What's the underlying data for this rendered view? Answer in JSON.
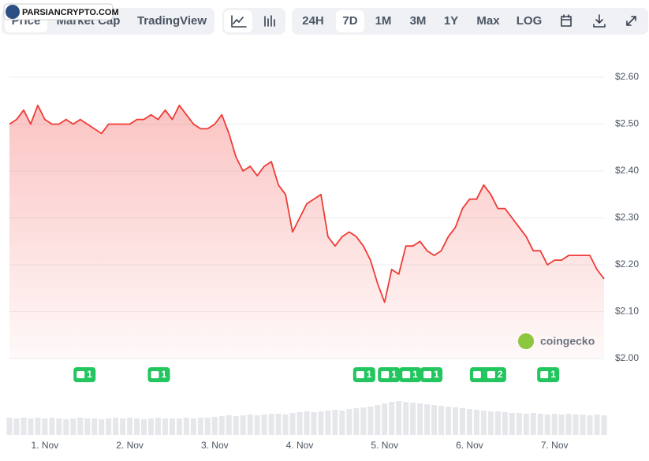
{
  "ui": {
    "tabs": [
      "Price",
      "Market Cap",
      "TradingView"
    ],
    "ranges": [
      "24H",
      "7D",
      "1M",
      "3M",
      "1Y",
      "Max",
      "LOG"
    ],
    "watermark": "PARSIANCRYPTO.COM",
    "brand": "coingecko"
  },
  "chart_data": {
    "type": "area",
    "x": [
      -10,
      -8,
      -6,
      -4,
      -2,
      0,
      2,
      4,
      6,
      8,
      10,
      12,
      14,
      16,
      18,
      20,
      22,
      24,
      26,
      28,
      30,
      32,
      34,
      36,
      38,
      40,
      42,
      44,
      46,
      48,
      50,
      52,
      54,
      56,
      58,
      60,
      62,
      64,
      66,
      68,
      70,
      72,
      74,
      76,
      78,
      80,
      82,
      84,
      86,
      88,
      90,
      92,
      94,
      96,
      98,
      100,
      102,
      104,
      106,
      108,
      110,
      112,
      114,
      116,
      118,
      120,
      122,
      124,
      126,
      128,
      130,
      132,
      134,
      136,
      138,
      140,
      142,
      144,
      146,
      148,
      150,
      152,
      154,
      156,
      158
    ],
    "series": [
      {
        "name": "Price",
        "color": "#ef3b36",
        "values": [
          2.5,
          2.51,
          2.53,
          2.5,
          2.54,
          2.51,
          2.5,
          2.5,
          2.51,
          2.5,
          2.51,
          2.5,
          2.49,
          2.48,
          2.5,
          2.5,
          2.5,
          2.5,
          2.51,
          2.51,
          2.52,
          2.51,
          2.53,
          2.51,
          2.54,
          2.52,
          2.5,
          2.49,
          2.49,
          2.5,
          2.52,
          2.48,
          2.43,
          2.4,
          2.41,
          2.39,
          2.41,
          2.42,
          2.37,
          2.35,
          2.27,
          2.3,
          2.33,
          2.34,
          2.35,
          2.26,
          2.24,
          2.26,
          2.27,
          2.26,
          2.24,
          2.21,
          2.16,
          2.12,
          2.19,
          2.18,
          2.24,
          2.24,
          2.25,
          2.23,
          2.22,
          2.23,
          2.26,
          2.28,
          2.32,
          2.34,
          2.34,
          2.37,
          2.35,
          2.32,
          2.32,
          2.3,
          2.28,
          2.26,
          2.23,
          2.23,
          2.2,
          2.21,
          2.21,
          2.22,
          2.22,
          2.22,
          2.22,
          2.19,
          2.17
        ]
      }
    ],
    "volume": {
      "color": "#e5e7eb",
      "values": [
        22,
        21,
        22,
        21,
        22,
        21,
        22,
        21,
        20,
        21,
        22,
        21,
        21,
        20,
        21,
        22,
        21,
        22,
        21,
        20,
        21,
        22,
        21,
        21,
        21,
        22,
        21,
        22,
        22,
        23,
        24,
        25,
        24,
        25,
        26,
        25,
        26,
        27,
        27,
        26,
        28,
        29,
        30,
        29,
        30,
        31,
        32,
        31,
        33,
        34,
        35,
        36,
        38,
        40,
        42,
        43,
        42,
        41,
        40,
        39,
        38,
        37,
        36,
        35,
        34,
        33,
        32,
        31,
        30,
        30,
        29,
        28,
        28,
        27,
        28,
        27,
        26,
        27,
        26,
        27,
        26,
        26,
        25,
        26,
        25
      ],
      "ylim": [
        0,
        50
      ]
    },
    "events": [
      {
        "x": 11,
        "count": 1
      },
      {
        "x": 32,
        "count": 1
      },
      {
        "x": 90,
        "count": 1
      },
      {
        "x": 97,
        "count": 1
      },
      {
        "x": 103,
        "count": 1
      },
      {
        "x": 109,
        "count": 1
      },
      {
        "x": 123,
        "count": 1
      },
      {
        "x": 127,
        "count": 2
      },
      {
        "x": 142,
        "count": 1
      }
    ],
    "xlim": [
      -10,
      158
    ],
    "xticks": [
      {
        "value": 0,
        "label": "1. Nov"
      },
      {
        "value": 24,
        "label": "2. Nov"
      },
      {
        "value": 48,
        "label": "3. Nov"
      },
      {
        "value": 72,
        "label": "4. Nov"
      },
      {
        "value": 96,
        "label": "5. Nov"
      },
      {
        "value": 120,
        "label": "6. Nov"
      },
      {
        "value": 144,
        "label": "7. Nov"
      }
    ],
    "ylim": [
      2.0,
      2.6
    ],
    "yticks": [
      {
        "value": 2.0,
        "label": "$2.00"
      },
      {
        "value": 2.1,
        "label": "$2.10"
      },
      {
        "value": 2.2,
        "label": "$2.20"
      },
      {
        "value": 2.3,
        "label": "$2.30"
      },
      {
        "value": 2.4,
        "label": "$2.40"
      },
      {
        "value": 2.5,
        "label": "$2.50"
      },
      {
        "value": 2.6,
        "label": "$2.60"
      }
    ],
    "grid": true
  }
}
